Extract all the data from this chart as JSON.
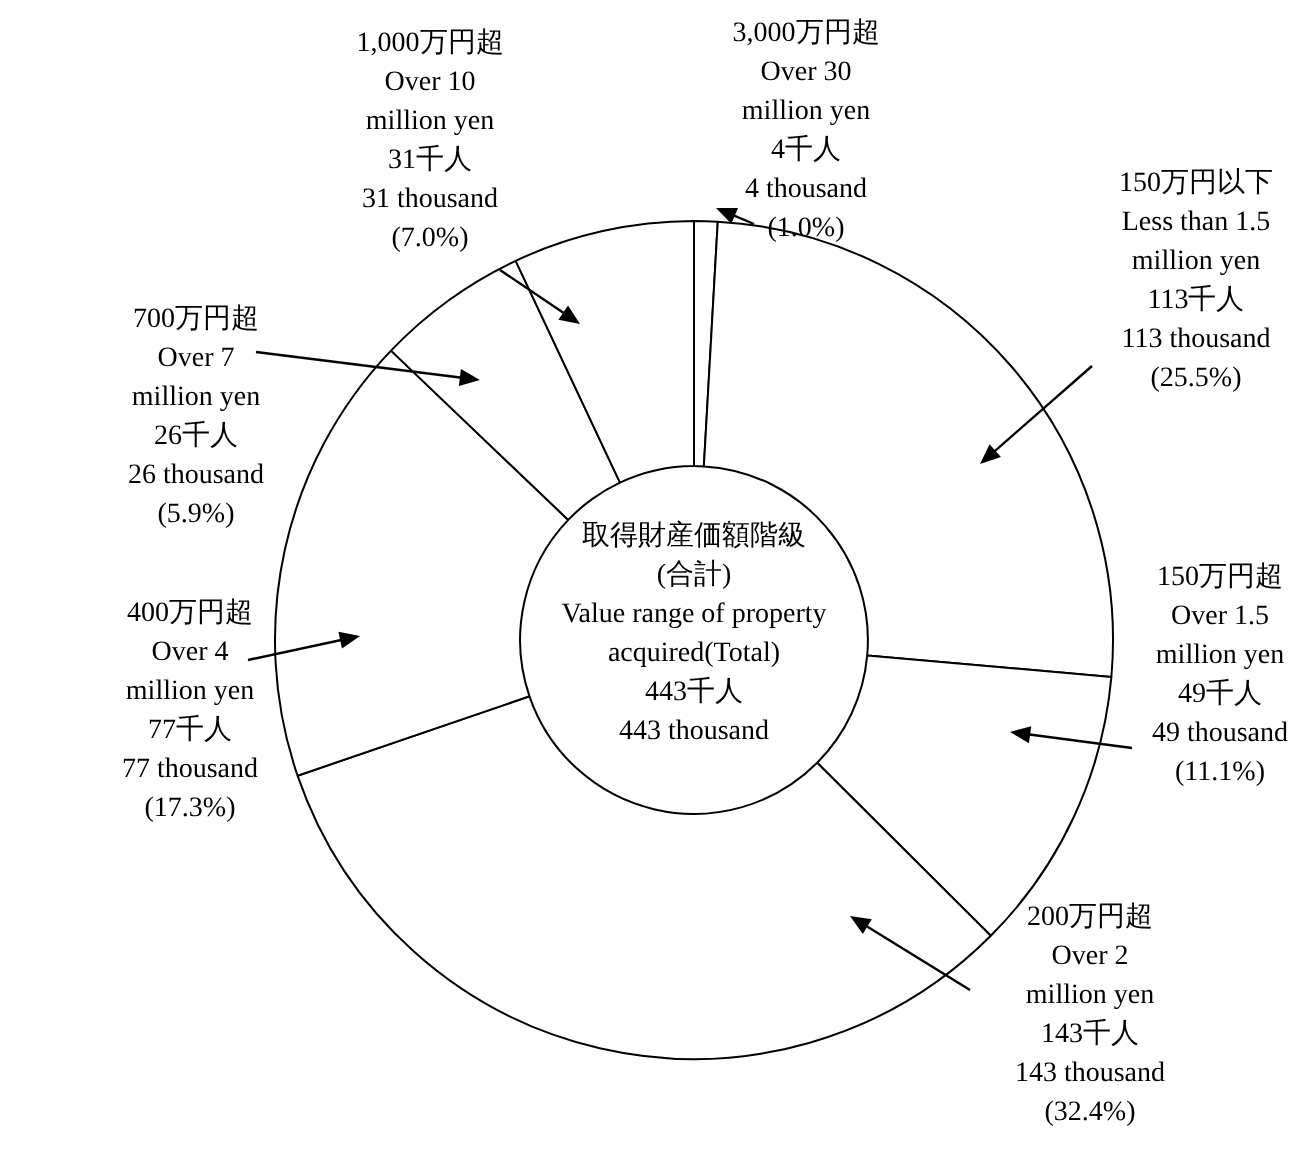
{
  "chart_data": {
    "type": "donut",
    "title": "取得財産価額階級\n(合計)\nValue range of property\nacquired(Total)\n443千人\n443 thousand",
    "categories": [
      "3,000万円超\nOver 30\nmillion yen",
      "150万円以下\nLess than 1.5\nmillion yen",
      "150万円超\nOver 1.5\nmillion yen",
      "200万円超\nOver 2\nmillion yen",
      "400万円超\nOver 4\nmillion yen",
      "700万円超\nOver 7\nmillion yen",
      "1,000万円超\nOver 10\nmillion yen"
    ],
    "values": [
      4,
      113,
      49,
      143,
      77,
      26,
      31
    ],
    "value_labels": [
      "4千人\n4 thousand\n(1.0%)",
      "113千人\n113 thousand\n(25.5%)",
      "49千人\n49 thousand\n(11.1%)",
      "143千人\n143 thousand\n(32.4%)",
      "77千人\n77 thousand\n(17.3%)",
      "26千人\n26 thousand\n(5.9%)",
      "31千人\n31 thousand\n(7.0%)"
    ],
    "colors": [
      "#ffffff",
      "#ffffff",
      "#ffffff",
      "#ffffff",
      "#ffffff",
      "#ffffff",
      "#ffffff"
    ],
    "legend": false
  }
}
